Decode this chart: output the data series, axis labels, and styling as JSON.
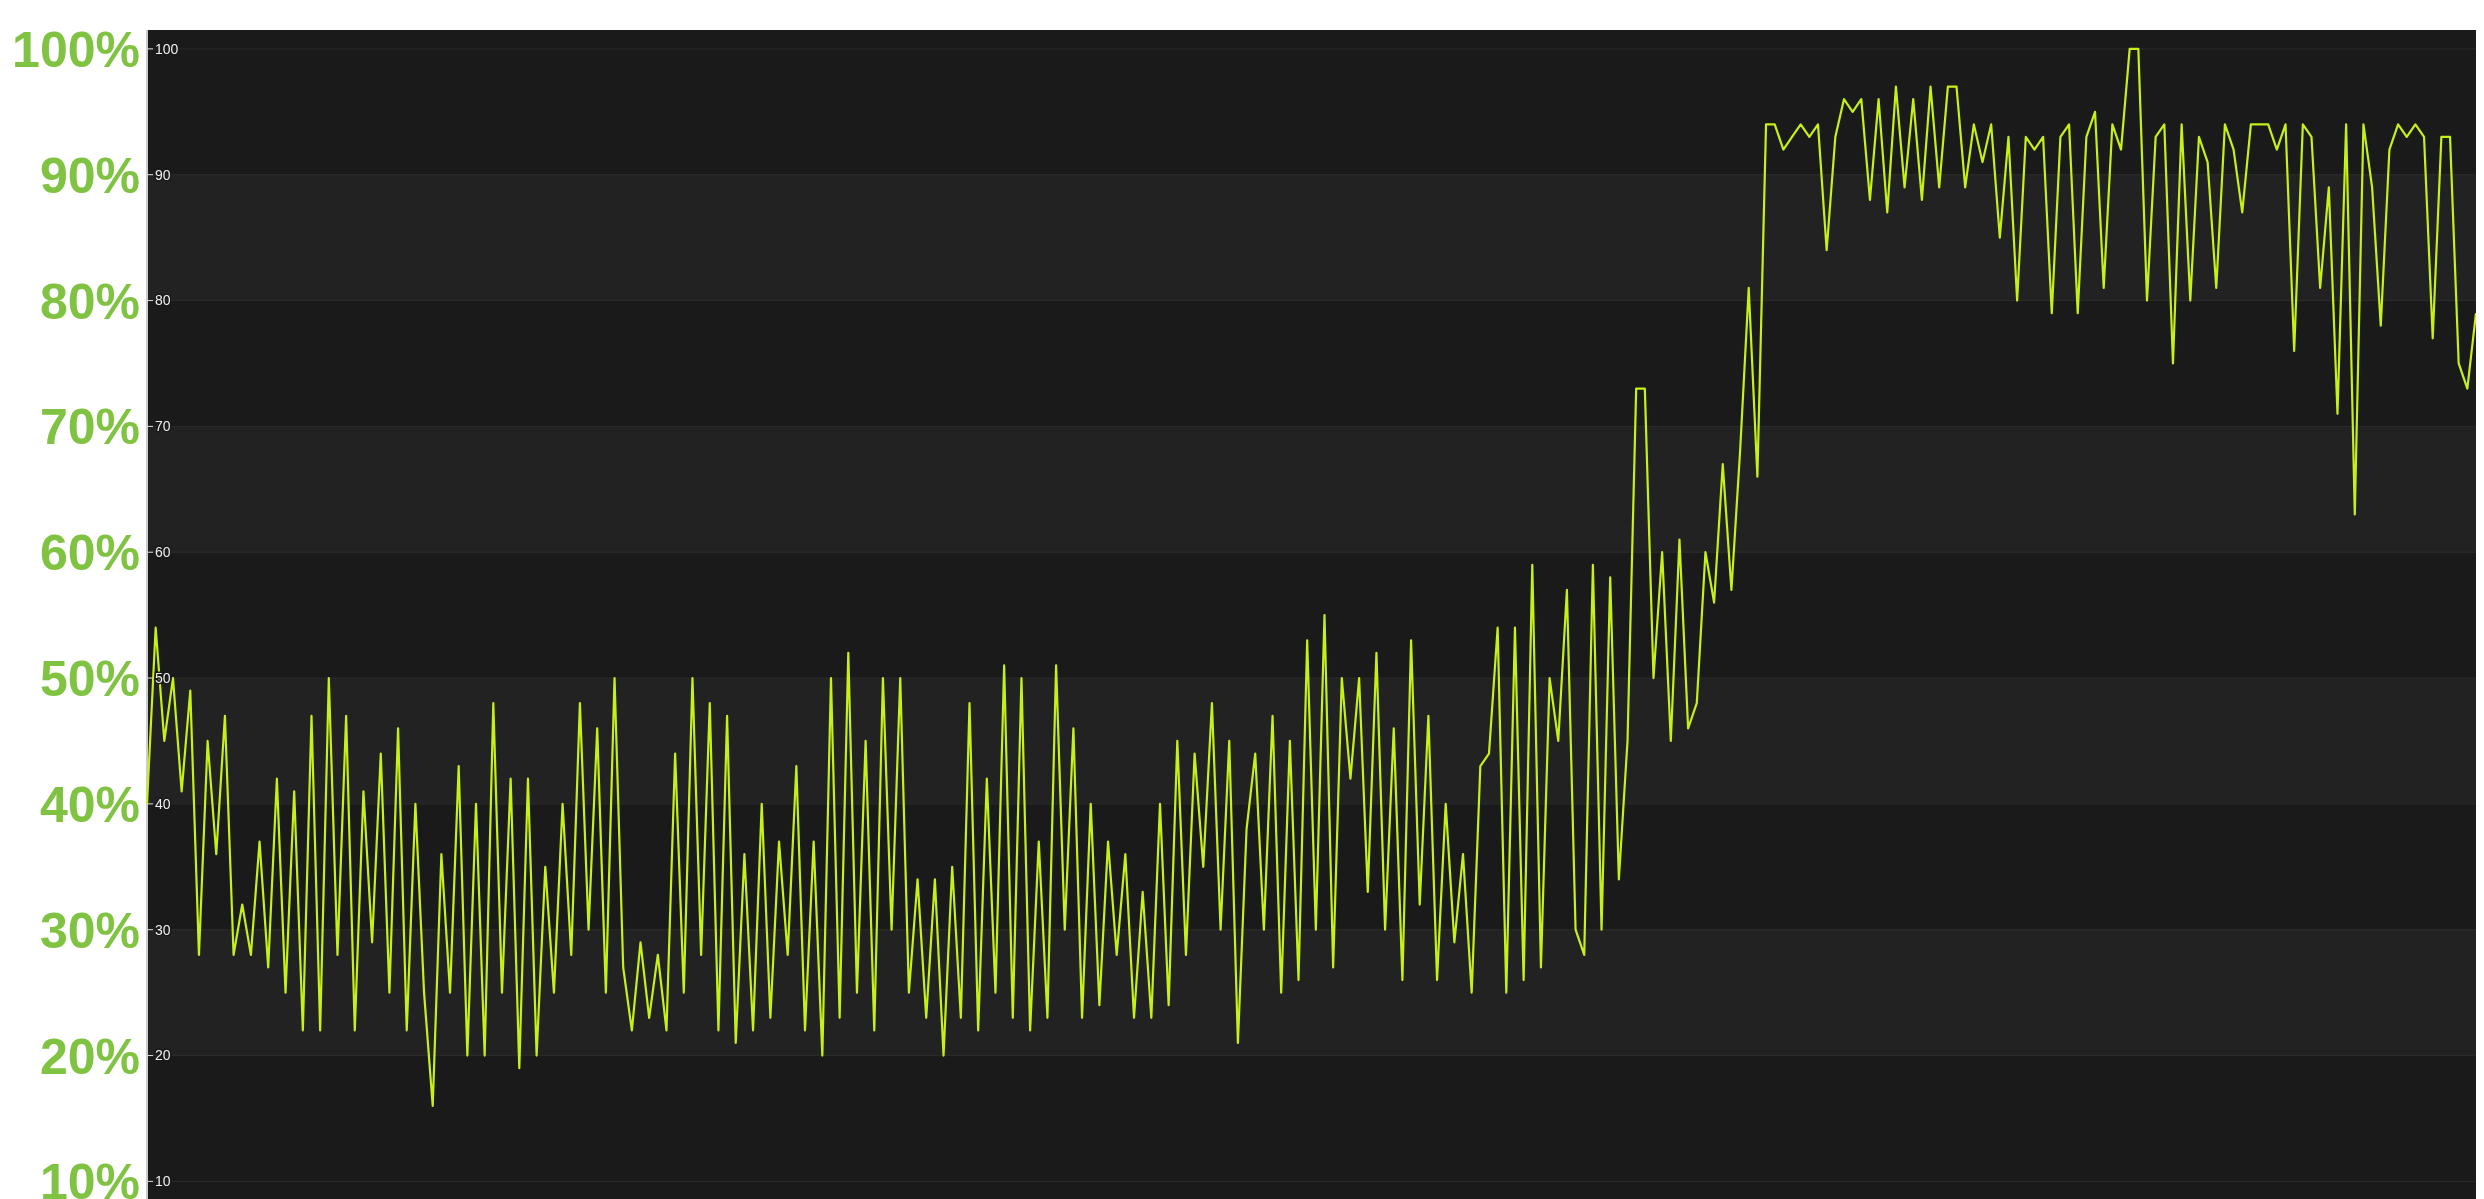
{
  "chart_data": {
    "type": "line",
    "categories": [
      null,
      null,
      null,
      null,
      null,
      null,
      null,
      null,
      null,
      null,
      null,
      null,
      null,
      null,
      null,
      null,
      null,
      null,
      null,
      null,
      null,
      null,
      null,
      null,
      null,
      null,
      null,
      null,
      null,
      null,
      null,
      null,
      null,
      null,
      null,
      null,
      null,
      null,
      null,
      null,
      null,
      null,
      null,
      null,
      null,
      null,
      null,
      null,
      null,
      null,
      null,
      null,
      null,
      null,
      null,
      null,
      null,
      null,
      null,
      null,
      null,
      null,
      null,
      null,
      null,
      null,
      null,
      null,
      null,
      null,
      null,
      null,
      null,
      null,
      null,
      null,
      null,
      null,
      null,
      null,
      null,
      null,
      null,
      null,
      null,
      null,
      null,
      null,
      null,
      null,
      null,
      null,
      null,
      null,
      null,
      null,
      null,
      null,
      null,
      null,
      null,
      null,
      null,
      null,
      null,
      null,
      null,
      null,
      null,
      null,
      null,
      null,
      null,
      null,
      null,
      null,
      null,
      null,
      null,
      null,
      null,
      null,
      null,
      null,
      null,
      null,
      null,
      null,
      null,
      null,
      null,
      null,
      null,
      null,
      null,
      null,
      null,
      null,
      null,
      null,
      null,
      null,
      null,
      null,
      null,
      null,
      null,
      null,
      null,
      null,
      null,
      null,
      null,
      null,
      null,
      null,
      null,
      null,
      null,
      null,
      null,
      null,
      null,
      null,
      null,
      null,
      null,
      null,
      null,
      null,
      null,
      null,
      null,
      null,
      null,
      null,
      null,
      null,
      null,
      null,
      null,
      null,
      null,
      null,
      null,
      null,
      null,
      null,
      null,
      null,
      null,
      null,
      null,
      null,
      null,
      null,
      null,
      null,
      null,
      null,
      null,
      null,
      null,
      null,
      null,
      null,
      null,
      null,
      null,
      null,
      null,
      null,
      null,
      null,
      null,
      null,
      null,
      null,
      null,
      null,
      null,
      null,
      null,
      null,
      null,
      null,
      null,
      null,
      null,
      null,
      null,
      null,
      null,
      null,
      null,
      null,
      null,
      null,
      null,
      null,
      null,
      null,
      null,
      null,
      null,
      null,
      null,
      null,
      null,
      null,
      null,
      null,
      null,
      null,
      null,
      null,
      null,
      null,
      null,
      null,
      null,
      null,
      null,
      null,
      null,
      null,
      null,
      null,
      null,
      null
    ],
    "series": [
      {
        "color": "#c5f018",
        "values": [
          40,
          54,
          45,
          50,
          41,
          49,
          28,
          45,
          36,
          47,
          28,
          32,
          28,
          37,
          27,
          42,
          25,
          41,
          22,
          47,
          22,
          50,
          28,
          47,
          22,
          41,
          29,
          44,
          25,
          46,
          22,
          40,
          25,
          16,
          36,
          25,
          43,
          20,
          40,
          20,
          48,
          25,
          42,
          19,
          42,
          20,
          35,
          25,
          40,
          28,
          48,
          30,
          46,
          25,
          50,
          27,
          22,
          29,
          23,
          28,
          22,
          44,
          25,
          50,
          28,
          48,
          22,
          47,
          21,
          36,
          22,
          40,
          23,
          37,
          28,
          43,
          22,
          37,
          20,
          50,
          23,
          52,
          25,
          45,
          22,
          50,
          30,
          50,
          25,
          34,
          23,
          34,
          20,
          35,
          23,
          48,
          22,
          42,
          25,
          51,
          23,
          50,
          22,
          37,
          23,
          51,
          30,
          46,
          23,
          40,
          24,
          37,
          28,
          36,
          23,
          33,
          23,
          40,
          24,
          45,
          28,
          44,
          35,
          48,
          30,
          45,
          21,
          38,
          44,
          30,
          47,
          25,
          45,
          26,
          53,
          30,
          55,
          27,
          50,
          42,
          50,
          33,
          52,
          30,
          46,
          26,
          53,
          32,
          47,
          26,
          40,
          29,
          36,
          25,
          43,
          44,
          54,
          25,
          54,
          26,
          59,
          27,
          50,
          45,
          57,
          30,
          28,
          59,
          30,
          58,
          34,
          45,
          73,
          73,
          50,
          60,
          45,
          61,
          46,
          48,
          60,
          56,
          67,
          57,
          68,
          81,
          66,
          94,
          94,
          92,
          93,
          94,
          93,
          94,
          84,
          93,
          96,
          95,
          96,
          88,
          96,
          87,
          97,
          89,
          96,
          88,
          97,
          89,
          97,
          97,
          89,
          94,
          91,
          94,
          85,
          93,
          80,
          93,
          92,
          93,
          79,
          93,
          94,
          79,
          93,
          95,
          81,
          94,
          92,
          100,
          100,
          80,
          93,
          94,
          75,
          94,
          80,
          93,
          91,
          81,
          94,
          92,
          87,
          94,
          94,
          94,
          92,
          94,
          76,
          94,
          93,
          81,
          89,
          71,
          94,
          63,
          94,
          89,
          78,
          92,
          94,
          93,
          94,
          93,
          77,
          93,
          93,
          75,
          73,
          79
        ]
      }
    ],
    "ylim": [
      8.6,
      101.5
    ],
    "yticks": [
      {
        "value": 100,
        "label": "100%"
      },
      {
        "value": 90,
        "label": "90%"
      },
      {
        "value": 80,
        "label": "80%"
      },
      {
        "value": 70,
        "label": "70%"
      },
      {
        "value": 60,
        "label": "60%"
      },
      {
        "value": 50,
        "label": "50%"
      },
      {
        "value": 40,
        "label": "40%"
      },
      {
        "value": 30,
        "label": "30%"
      },
      {
        "value": 20,
        "label": "20%"
      },
      {
        "value": 10,
        "label": "10%"
      }
    ],
    "y2lim": [
      8.6,
      101.5
    ],
    "y2ticks": [
      100,
      90,
      80,
      70,
      60,
      50,
      40,
      30,
      20,
      10
    ],
    "grid": true,
    "tick_labels": "y",
    "marker": "none",
    "line_style": "solid"
  }
}
